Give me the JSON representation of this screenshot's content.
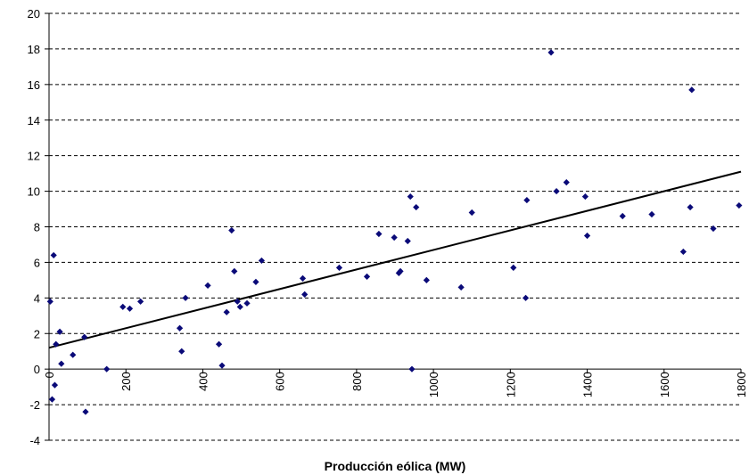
{
  "chart_data": {
    "type": "scatter",
    "title": "",
    "xlabel": "Producción eólica (MW)",
    "ylabel": "",
    "xlim": [
      0,
      1800
    ],
    "ylim": [
      -4,
      20
    ],
    "x_ticks": [
      "0",
      "200",
      "400",
      "600",
      "800",
      "1000",
      "1200",
      "1400",
      "1600",
      "1800"
    ],
    "y_ticks": [
      "-4",
      "-2",
      "0",
      "2",
      "4",
      "6",
      "8",
      "10",
      "12",
      "14",
      "16",
      "18",
      "20"
    ],
    "grid": "horizontal-dashed",
    "marker_color": "#0a0a78",
    "trendline": {
      "x": [
        0,
        1800
      ],
      "y": [
        1.2,
        11.1
      ],
      "color": "#000000"
    },
    "points": [
      {
        "x": 3,
        "y": 3.8
      },
      {
        "x": 8,
        "y": -1.7
      },
      {
        "x": 12,
        "y": 6.4
      },
      {
        "x": 15,
        "y": -0.9
      },
      {
        "x": 18,
        "y": 1.4
      },
      {
        "x": 28,
        "y": 2.1
      },
      {
        "x": 32,
        "y": 0.3
      },
      {
        "x": 62,
        "y": 0.8
      },
      {
        "x": 92,
        "y": 1.8
      },
      {
        "x": 95,
        "y": -2.4
      },
      {
        "x": 150,
        "y": 0.0
      },
      {
        "x": 192,
        "y": 3.5
      },
      {
        "x": 210,
        "y": 3.4
      },
      {
        "x": 238,
        "y": 3.8
      },
      {
        "x": 340,
        "y": 2.3
      },
      {
        "x": 345,
        "y": 1.0
      },
      {
        "x": 355,
        "y": 4.0
      },
      {
        "x": 413,
        "y": 4.7
      },
      {
        "x": 442,
        "y": 1.4
      },
      {
        "x": 450,
        "y": 0.2
      },
      {
        "x": 462,
        "y": 3.2
      },
      {
        "x": 475,
        "y": 7.8
      },
      {
        "x": 482,
        "y": 5.5
      },
      {
        "x": 490,
        "y": 3.8
      },
      {
        "x": 497,
        "y": 3.5
      },
      {
        "x": 515,
        "y": 3.7
      },
      {
        "x": 538,
        "y": 4.9
      },
      {
        "x": 553,
        "y": 6.1
      },
      {
        "x": 660,
        "y": 5.1
      },
      {
        "x": 665,
        "y": 4.2
      },
      {
        "x": 755,
        "y": 5.7
      },
      {
        "x": 827,
        "y": 5.2
      },
      {
        "x": 858,
        "y": 7.6
      },
      {
        "x": 898,
        "y": 7.4
      },
      {
        "x": 910,
        "y": 5.4
      },
      {
        "x": 914,
        "y": 5.5
      },
      {
        "x": 933,
        "y": 7.2
      },
      {
        "x": 940,
        "y": 9.7
      },
      {
        "x": 944,
        "y": 0.0
      },
      {
        "x": 955,
        "y": 9.1
      },
      {
        "x": 982,
        "y": 5.0
      },
      {
        "x": 1072,
        "y": 4.6
      },
      {
        "x": 1100,
        "y": 8.8
      },
      {
        "x": 1208,
        "y": 5.7
      },
      {
        "x": 1240,
        "y": 4.0
      },
      {
        "x": 1243,
        "y": 9.5
      },
      {
        "x": 1306,
        "y": 17.8
      },
      {
        "x": 1320,
        "y": 10.0
      },
      {
        "x": 1346,
        "y": 10.5
      },
      {
        "x": 1395,
        "y": 9.7
      },
      {
        "x": 1400,
        "y": 7.5
      },
      {
        "x": 1492,
        "y": 8.6
      },
      {
        "x": 1568,
        "y": 8.7
      },
      {
        "x": 1650,
        "y": 6.6
      },
      {
        "x": 1668,
        "y": 9.1
      },
      {
        "x": 1672,
        "y": 15.7
      },
      {
        "x": 1728,
        "y": 7.9
      },
      {
        "x": 1795,
        "y": 9.2
      }
    ]
  }
}
